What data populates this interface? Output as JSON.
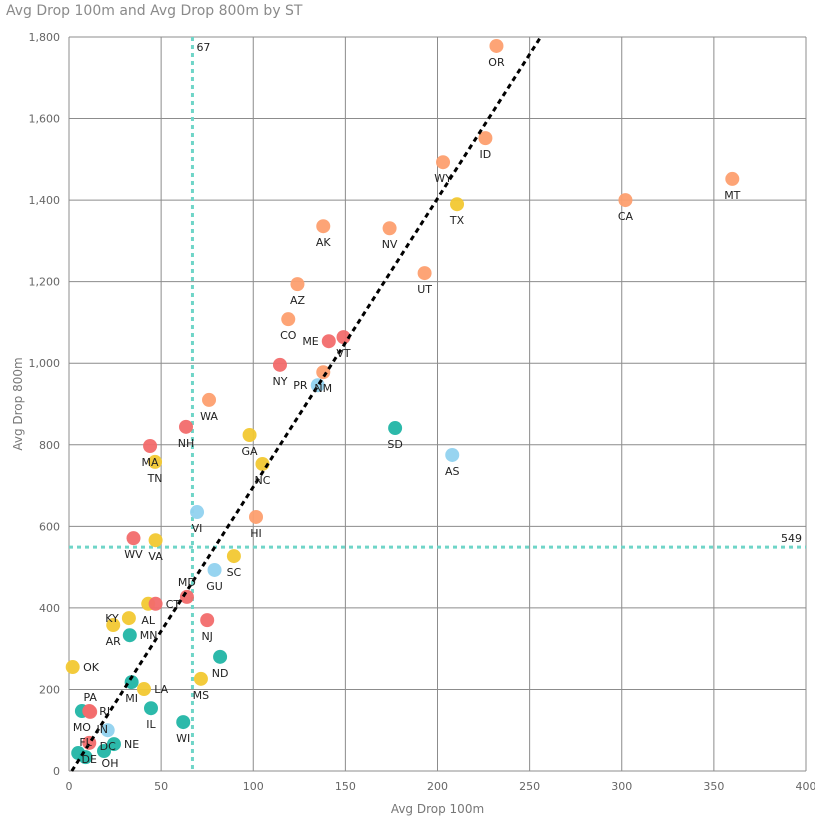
{
  "chart_data": {
    "type": "scatter",
    "title": "Avg Drop 100m and Avg Drop 800m by ST",
    "xlabel": "Avg Drop 100m",
    "ylabel": "Avg Drop 800m",
    "xlim": [
      0,
      400
    ],
    "ylim": [
      0,
      1800
    ],
    "xticks": [
      0,
      50,
      100,
      150,
      200,
      250,
      300,
      350,
      400
    ],
    "yticks": [
      0,
      200,
      400,
      600,
      800,
      1000,
      1200,
      1400,
      1600,
      1800
    ],
    "grid": true,
    "colors": {
      "orange": "#FD9F6F",
      "red": "#F26B6B",
      "yellow": "#F2C832",
      "teal": "#21B5A5",
      "lightblue": "#91D2EF",
      "ref": "#6FD5C8"
    },
    "ref_lines": [
      {
        "axis": "x",
        "value": 67,
        "label": "67"
      },
      {
        "axis": "y",
        "value": 549,
        "label": "549"
      }
    ],
    "trend_line": [
      [
        1.5,
        0
      ],
      [
        256,
        1800
      ]
    ],
    "points": [
      {
        "label": "OR",
        "x": 232,
        "y": 1778,
        "color": "orange"
      },
      {
        "label": "ID",
        "x": 226,
        "y": 1552,
        "color": "orange"
      },
      {
        "label": "WY",
        "x": 203,
        "y": 1493,
        "color": "orange"
      },
      {
        "label": "TX",
        "x": 210.6,
        "y": 1390,
        "color": "yellow"
      },
      {
        "label": "CA",
        "x": 302,
        "y": 1400,
        "color": "orange"
      },
      {
        "label": "MT",
        "x": 360,
        "y": 1452,
        "color": "orange"
      },
      {
        "label": "AK",
        "x": 138,
        "y": 1336,
        "color": "orange"
      },
      {
        "label": "NV",
        "x": 174,
        "y": 1331,
        "color": "orange"
      },
      {
        "label": "AZ",
        "x": 124,
        "y": 1194,
        "color": "orange"
      },
      {
        "label": "UT",
        "x": 193,
        "y": 1221,
        "color": "orange"
      },
      {
        "label": "CO",
        "x": 119,
        "y": 1108,
        "color": "orange"
      },
      {
        "label": "VT",
        "x": 149,
        "y": 1064,
        "color": "red"
      },
      {
        "label": "ME",
        "x": 141,
        "y": 1054,
        "color": "red"
      },
      {
        "label": "NY",
        "x": 114.5,
        "y": 996,
        "color": "red"
      },
      {
        "label": "NM",
        "x": 138,
        "y": 978,
        "color": "orange"
      },
      {
        "label": "PR",
        "x": 135,
        "y": 946,
        "color": "lightblue"
      },
      {
        "label": "WA",
        "x": 76,
        "y": 910,
        "color": "orange"
      },
      {
        "label": "NH",
        "x": 63.5,
        "y": 844,
        "color": "red"
      },
      {
        "label": "MA",
        "x": 44,
        "y": 797,
        "color": "red"
      },
      {
        "label": "TN",
        "x": 46.7,
        "y": 758,
        "color": "yellow"
      },
      {
        "label": "GA",
        "x": 98,
        "y": 824,
        "color": "yellow"
      },
      {
        "label": "NC",
        "x": 105,
        "y": 753,
        "color": "yellow"
      },
      {
        "label": "SD",
        "x": 177,
        "y": 841,
        "color": "teal"
      },
      {
        "label": "AS",
        "x": 208,
        "y": 775,
        "color": "lightblue"
      },
      {
        "label": "VI",
        "x": 69.5,
        "y": 635,
        "color": "lightblue"
      },
      {
        "label": "HI",
        "x": 101.5,
        "y": 623,
        "color": "orange"
      },
      {
        "label": "WV",
        "x": 35,
        "y": 571,
        "color": "red"
      },
      {
        "label": "VA",
        "x": 47,
        "y": 566,
        "color": "yellow"
      },
      {
        "label": "SC",
        "x": 89.5,
        "y": 527,
        "color": "yellow"
      },
      {
        "label": "GU",
        "x": 79,
        "y": 493,
        "color": "lightblue"
      },
      {
        "label": "AL",
        "x": 43,
        "y": 410,
        "color": "yellow"
      },
      {
        "label": "CT",
        "x": 47,
        "y": 410,
        "color": "red"
      },
      {
        "label": "MD",
        "x": 64,
        "y": 427,
        "color": "red"
      },
      {
        "label": "NJ",
        "x": 75,
        "y": 370,
        "color": "red"
      },
      {
        "label": "AR",
        "x": 24,
        "y": 358,
        "color": "yellow"
      },
      {
        "label": "KY",
        "x": 32.5,
        "y": 375,
        "color": "yellow"
      },
      {
        "label": "MN",
        "x": 33,
        "y": 333,
        "color": "teal"
      },
      {
        "label": "OK",
        "x": 2,
        "y": 255,
        "color": "yellow"
      },
      {
        "label": "ND",
        "x": 82,
        "y": 280,
        "color": "teal"
      },
      {
        "label": "MI",
        "x": 34,
        "y": 218,
        "color": "teal"
      },
      {
        "label": "MS",
        "x": 71.6,
        "y": 226,
        "color": "yellow"
      },
      {
        "label": "LA",
        "x": 40.7,
        "y": 201,
        "color": "yellow"
      },
      {
        "label": "MO",
        "x": 7,
        "y": 147,
        "color": "teal"
      },
      {
        "label": "RI",
        "x": 11,
        "y": 147,
        "color": "red"
      },
      {
        "label": "PA",
        "x": 11.5,
        "y": 145,
        "color": "red"
      },
      {
        "label": "IL",
        "x": 44.5,
        "y": 154,
        "color": "teal"
      },
      {
        "label": "WI",
        "x": 62,
        "y": 120,
        "color": "teal"
      },
      {
        "label": "DC",
        "x": 21,
        "y": 100,
        "color": "lightblue"
      },
      {
        "label": "NE",
        "x": 24.4,
        "y": 66,
        "color": "teal"
      },
      {
        "label": "DE",
        "x": 11,
        "y": 69,
        "color": "red"
      },
      {
        "label": "OH",
        "x": 19,
        "y": 49,
        "color": "teal"
      },
      {
        "label": "FL",
        "x": 9,
        "y": 34,
        "color": "teal"
      },
      {
        "label": "IN",
        "x": 5,
        "y": 44,
        "color": "teal"
      }
    ]
  }
}
